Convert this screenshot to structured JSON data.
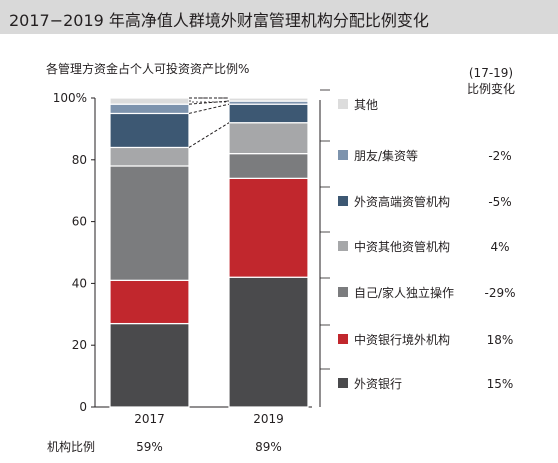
{
  "title": "2017−2019 年高净值人群境外财富管理机构分配比例变化",
  "chart_data": {
    "type": "bar",
    "stacked": true,
    "subtitle": "各管理方资金占个人可投资资产比例%",
    "change_header": [
      "(17-19)",
      "比例变化"
    ],
    "categories": [
      "2017",
      "2019"
    ],
    "ylim": [
      0,
      100
    ],
    "yticks": [
      "0",
      "20",
      "40",
      "60",
      "80",
      "100%"
    ],
    "ytick_values": [
      0,
      20,
      40,
      60,
      80,
      100
    ],
    "series": [
      {
        "name": "外资银行",
        "values": [
          27,
          42
        ],
        "change": "15%",
        "color": "#4a4a4c"
      },
      {
        "name": "中资银行境外机构",
        "values": [
          14,
          32
        ],
        "change": "18%",
        "color": "#c1272d"
      },
      {
        "name": "自己/家人独立操作",
        "values": [
          37,
          8
        ],
        "change": "-29%",
        "color": "#7b7c7e"
      },
      {
        "name": "中资其他资管机构",
        "values": [
          6,
          10
        ],
        "change": "4%",
        "color": "#a6a7a9"
      },
      {
        "name": "外资高端资管机构",
        "values": [
          11,
          6
        ],
        "change": "-5%",
        "color": "#3d5873"
      },
      {
        "name": "朋友/集资等",
        "values": [
          3,
          1
        ],
        "change": "-2%",
        "color": "#7d93ad"
      },
      {
        "name": "其他",
        "values": [
          2,
          1
        ],
        "change": "",
        "color": "#dcdcdc"
      }
    ],
    "footer_label": "机构比例",
    "footer_values": [
      "59%",
      "89%"
    ],
    "grid": false,
    "legend_position": "right"
  }
}
